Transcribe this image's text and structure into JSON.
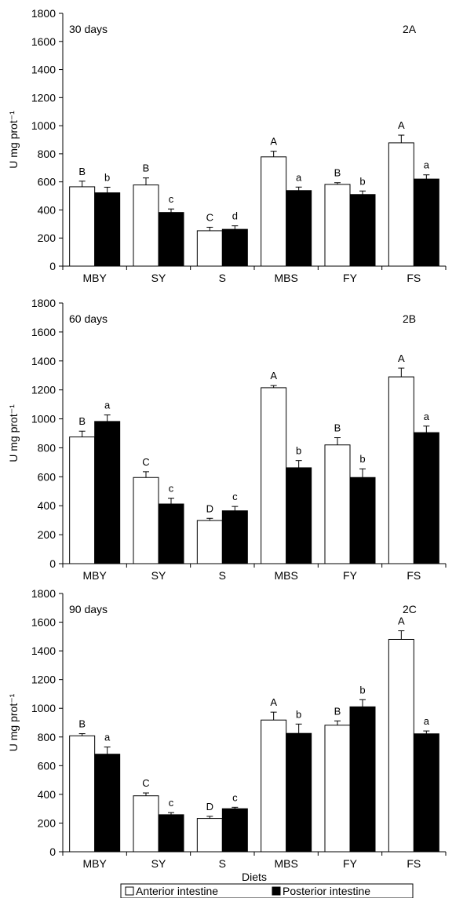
{
  "figure": {
    "xlabel": "Diets",
    "legend": [
      "Anterior intestine",
      "Posterior intestine"
    ]
  },
  "chart_data": [
    {
      "type": "bar",
      "panel_label": "2A",
      "title": "30 days",
      "ylabel": "U mg prot⁻¹",
      "ylim": [
        0,
        1800
      ],
      "yticks": [
        0,
        200,
        400,
        600,
        800,
        1000,
        1200,
        1400,
        1600,
        1800
      ],
      "categories": [
        "MBY",
        "SY",
        "S",
        "MBS",
        "FY",
        "FS"
      ],
      "series": [
        {
          "name": "Anterior intestine",
          "values": [
            565,
            578,
            252,
            778,
            582,
            878
          ],
          "errors": [
            40,
            50,
            25,
            40,
            12,
            55
          ],
          "letters": [
            "B",
            "B",
            "C",
            "A",
            "B",
            "A"
          ]
        },
        {
          "name": "Posterior intestine",
          "values": [
            522,
            382,
            262,
            538,
            510,
            620
          ],
          "errors": [
            40,
            25,
            25,
            25,
            25,
            30
          ],
          "letters": [
            "b",
            "c",
            "d",
            "a",
            "b",
            "a"
          ]
        }
      ],
      "legend": "bottom"
    },
    {
      "type": "bar",
      "panel_label": "2B",
      "title": "60 days",
      "ylabel": "U mg prot⁻¹",
      "ylim": [
        0,
        1800
      ],
      "yticks": [
        0,
        200,
        400,
        600,
        800,
        1000,
        1200,
        1400,
        1600,
        1800
      ],
      "categories": [
        "MBY",
        "SY",
        "S",
        "MBS",
        "FY",
        "FS"
      ],
      "series": [
        {
          "name": "Anterior intestine",
          "values": [
            875,
            595,
            298,
            1215,
            820,
            1290
          ],
          "errors": [
            40,
            40,
            15,
            15,
            50,
            60
          ],
          "letters": [
            "B",
            "C",
            "D",
            "A",
            "B",
            "A"
          ]
        },
        {
          "name": "Posterior intestine",
          "values": [
            982,
            412,
            365,
            662,
            595,
            905
          ],
          "errors": [
            45,
            40,
            30,
            50,
            60,
            45
          ],
          "letters": [
            "a",
            "c",
            "c",
            "b",
            "b",
            "a"
          ]
        }
      ],
      "legend": "bottom"
    },
    {
      "type": "bar",
      "panel_label": "2C",
      "title": "90 days",
      "ylabel": "U mg prot⁻¹",
      "ylim": [
        0,
        1800
      ],
      "yticks": [
        0,
        200,
        400,
        600,
        800,
        1000,
        1200,
        1400,
        1600,
        1800
      ],
      "categories": [
        "MBY",
        "SY",
        "S",
        "MBS",
        "FY",
        "FS"
      ],
      "series": [
        {
          "name": "Anterior intestine",
          "values": [
            808,
            390,
            232,
            918,
            882,
            1480
          ],
          "errors": [
            15,
            20,
            15,
            55,
            30,
            60
          ],
          "letters": [
            "B",
            "C",
            "D",
            "A",
            "B",
            "A"
          ]
        },
        {
          "name": "Posterior intestine",
          "values": [
            680,
            258,
            300,
            825,
            1010,
            822
          ],
          "errors": [
            50,
            15,
            10,
            65,
            50,
            20
          ],
          "letters": [
            "a",
            "c",
            "c",
            "b",
            "b",
            "a"
          ]
        }
      ],
      "legend": "bottom"
    }
  ],
  "colors": {
    "anterior": "#ffffff",
    "posterior": "#000000",
    "axis": "#000000"
  }
}
